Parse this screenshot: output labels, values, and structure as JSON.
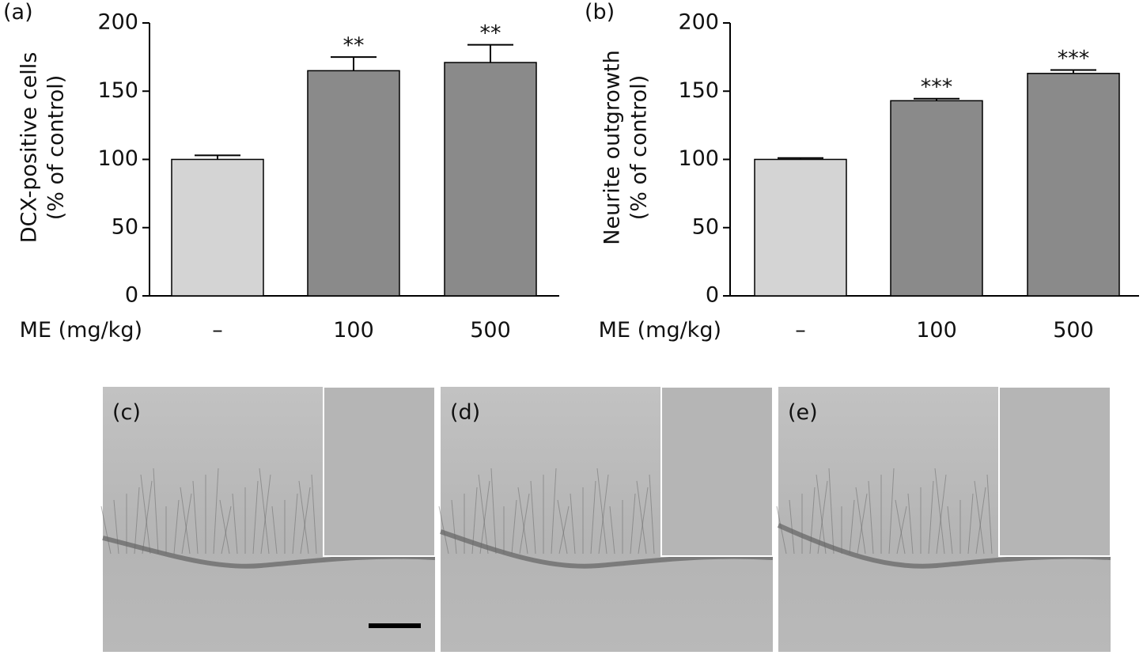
{
  "chart_data": [
    {
      "type": "bar",
      "panel_label": "(a)",
      "ylabel": [
        "DCX-positive cells",
        "(% of control)"
      ],
      "xlabel": "ME (mg/kg)",
      "categories": [
        "–",
        "100",
        "500"
      ],
      "values": [
        100,
        165,
        171
      ],
      "errors": [
        3,
        10,
        13
      ],
      "colors": [
        "#d4d4d4",
        "#8a8a8a",
        "#8a8a8a"
      ],
      "significance": [
        null,
        "**",
        "**"
      ],
      "ylim": [
        0,
        200
      ],
      "yticks": [
        0,
        50,
        100,
        150,
        200
      ]
    },
    {
      "type": "bar",
      "panel_label": "(b)",
      "ylabel": [
        "Neurite outgrowth",
        "(% of control)"
      ],
      "xlabel": "ME (mg/kg)",
      "categories": [
        "–",
        "100",
        "500"
      ],
      "values": [
        100,
        143,
        163
      ],
      "errors": [
        1,
        1.5,
        2.5
      ],
      "colors": [
        "#d4d4d4",
        "#8a8a8a",
        "#8a8a8a"
      ],
      "significance": [
        null,
        "***",
        "***"
      ],
      "ylim": [
        0,
        200
      ],
      "yticks": [
        0,
        50,
        100,
        150,
        200
      ]
    }
  ],
  "panels": [
    {
      "label": "(c)"
    },
    {
      "label": "(d)"
    },
    {
      "label": "(e)"
    }
  ]
}
